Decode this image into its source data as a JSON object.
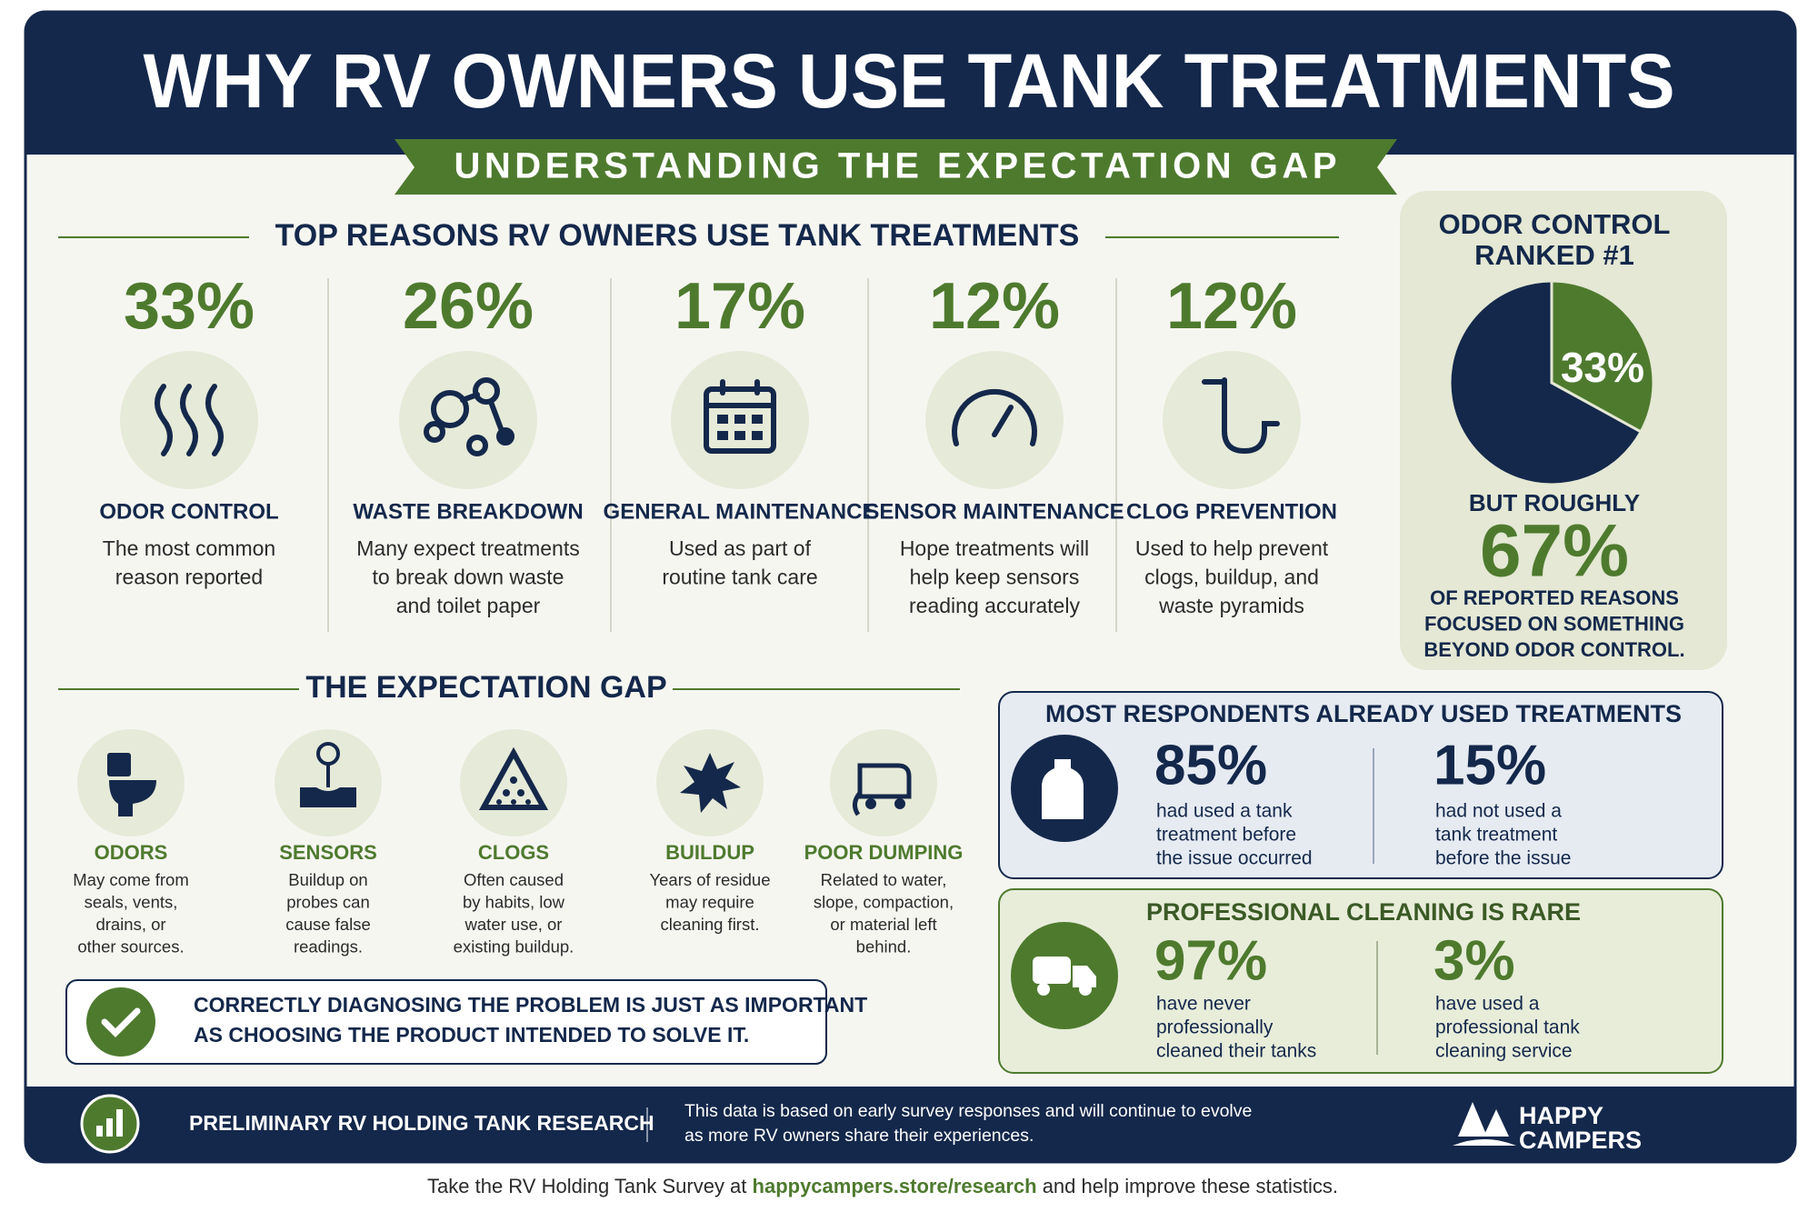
{
  "header": {
    "title": "WHY RV OWNERS USE TANK TREATMENTS",
    "subtitle": "UNDERSTANDING THE EXPECTATION GAP"
  },
  "reasons": {
    "heading": "TOP REASONS RV OWNERS USE TANK TREATMENTS",
    "items": [
      {
        "value": "33%",
        "label": "ODOR CONTROL",
        "description": [
          "The most common",
          "reason reported"
        ]
      },
      {
        "value": "26%",
        "label": "WASTE BREAKDOWN",
        "description": [
          "Many expect treatments",
          "to break down waste",
          "and toilet paper"
        ]
      },
      {
        "value": "17%",
        "label": "GENERAL MAINTENANCE",
        "description": [
          "Used as part of",
          "routine tank care"
        ]
      },
      {
        "value": "12%",
        "label": "SENSOR MAINTENANCE",
        "description": [
          "Hope treatments will",
          "help keep sensors",
          "reading accurately"
        ]
      },
      {
        "value": "12%",
        "label": "CLOG PREVENTION",
        "description": [
          "Used to help prevent",
          "clogs, buildup, and",
          "waste pyramids"
        ]
      }
    ]
  },
  "sidebar": {
    "title": [
      "ODOR CONTROL",
      "RANKED #1"
    ],
    "pie": {
      "values": [
        33,
        67
      ],
      "colors": [
        "#4e7a2e",
        "#14284b"
      ],
      "label": "33%"
    },
    "lead": "BUT ROUGHLY",
    "stat": "67%",
    "note": [
      "OF REPORTED REASONS",
      "FOCUSED ON SOMETHING",
      "BEYOND ODOR CONTROL."
    ]
  },
  "gap": {
    "heading": "THE EXPECTATION GAP",
    "items": [
      {
        "label": "ODORS",
        "description": [
          "May come from",
          "seals, vents,",
          "drains, or",
          "other sources."
        ]
      },
      {
        "label": "SENSORS",
        "description": [
          "Buildup on",
          "probes can",
          "cause false",
          "readings."
        ]
      },
      {
        "label": "CLOGS",
        "description": [
          "Often caused",
          "by habits, low",
          "water use, or",
          "existing buildup."
        ]
      },
      {
        "label": "BUILDUP",
        "description": [
          "Years of residue",
          "may require",
          "cleaning first."
        ]
      },
      {
        "label": "POOR DUMPING",
        "description": [
          "Related to water,",
          "slope, compaction,",
          "or material left",
          "behind."
        ]
      }
    ],
    "callout": [
      "CORRECTLY DIAGNOSING THE PROBLEM IS JUST AS IMPORTANT",
      "AS CHOOSING THE PRODUCT INTENDED TO SOLVE IT."
    ]
  },
  "stats": [
    {
      "title": "MOST RESPONDENTS ALREADY USED TREATMENTS",
      "items": [
        {
          "value": "85%",
          "description": [
            "had used a tank",
            "treatment before",
            "the issue occurred"
          ]
        },
        {
          "value": "15%",
          "description": [
            "had not used a",
            "tank treatment",
            "before the issue"
          ]
        }
      ]
    },
    {
      "title": "PROFESSIONAL CLEANING IS RARE",
      "items": [
        {
          "value": "97%",
          "description": [
            "have never",
            "professionally",
            "cleaned their tanks"
          ]
        },
        {
          "value": "3%",
          "description": [
            "have used a",
            "professional tank",
            "cleaning service"
          ]
        }
      ]
    }
  ],
  "footer": {
    "label": "PRELIMINARY RV HOLDING TANK RESEARCH",
    "note": [
      "This data is based on early survey responses and will continue to evolve",
      "as more RV owners share their experiences."
    ],
    "brand": [
      "HAPPY",
      "CAMPERS"
    ]
  },
  "cta": {
    "before": "Take the RV Holding Tank Survey at ",
    "link": "happycampers.store/research",
    "after": " and help improve these statistics."
  }
}
